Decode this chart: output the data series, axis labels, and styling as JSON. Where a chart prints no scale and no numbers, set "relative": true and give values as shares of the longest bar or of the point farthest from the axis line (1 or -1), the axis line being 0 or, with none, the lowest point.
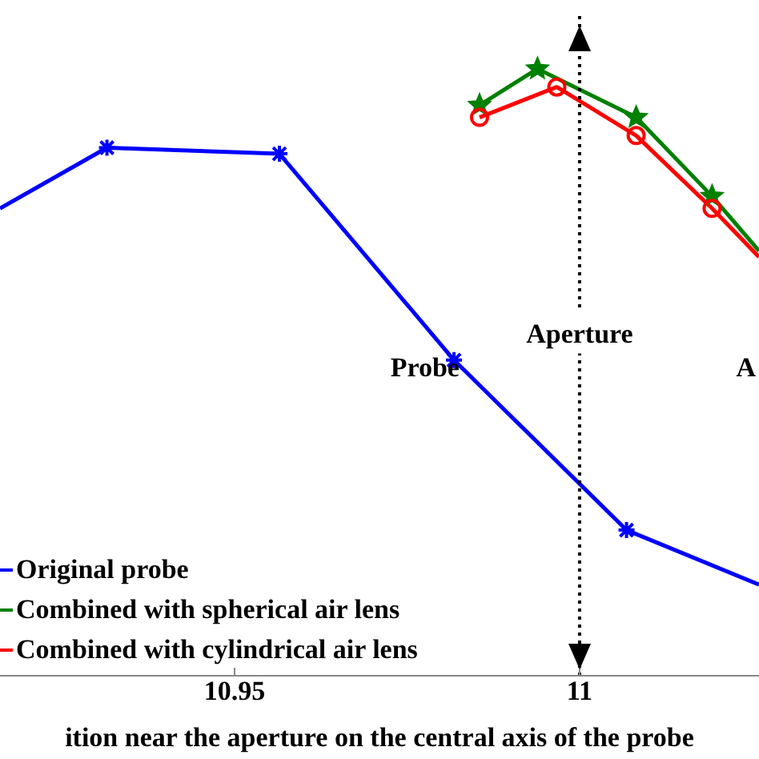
{
  "chart_data": {
    "type": "line",
    "relative": true,
    "xlabel": "ition near the aperture on the central axis of the probe",
    "xlim": [
      10.916,
      11.026
    ],
    "xticks": [
      10.95,
      11
    ],
    "legend": "bottom left",
    "grid": false,
    "line_style": "solid",
    "series": [
      {
        "name": "Original probe",
        "color": "#0000ff",
        "marker": "cross",
        "x": [
          10.916,
          10.9315,
          10.9565,
          10.9818,
          11.0068,
          11.026
        ],
        "values": [
          0.77,
          0.87,
          0.86,
          0.52,
          0.24,
          0.15
        ]
      },
      {
        "name": "Combined with spherical air lens",
        "color": "#008000",
        "marker": "star",
        "x": [
          10.9855,
          10.9939,
          11.0082,
          11.0192,
          11.026
        ],
        "values": [
          0.94,
          1,
          0.92,
          0.79,
          0.7
        ]
      },
      {
        "name": "Combined with cylindrical air lens",
        "color": "#ff0000",
        "marker": "circle",
        "x": [
          10.9855,
          10.9967,
          11.0082,
          11.0192,
          11.026
        ],
        "values": [
          0.92,
          0.97,
          0.89,
          0.77,
          0.69
        ]
      }
    ],
    "ref_lines": [
      {
        "axis": "x",
        "value": 11,
        "label": "Aperture",
        "color": "#000000",
        "line_style": "dotted"
      }
    ],
    "annotations": [
      "Probe",
      "A"
    ]
  }
}
